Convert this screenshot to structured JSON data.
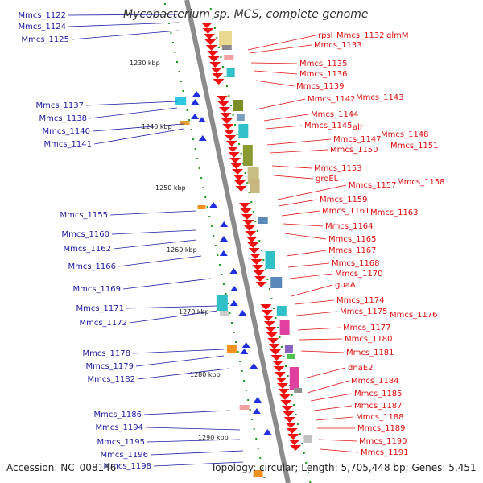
{
  "title": "Mycobacterium sp. MCS, complete genome",
  "footer": {
    "accession": "Accession: NC_008146",
    "summary": "Topology: circular; Length: 5,705,448 bp; Genes: 5,451"
  },
  "colors": {
    "axis": "#8c8c8c",
    "forward_strand": "#2030e0",
    "reverse_strand": "#f01010",
    "left_label": "#1a1aa6",
    "right_label": "#e01010",
    "tick": "#1a9a1a"
  },
  "scale_ticks": [
    "1230 kbp",
    "1240 kbp",
    "1250 kbp",
    "1260 kbp",
    "1270 kbp",
    "1280 kbp",
    "1290 kbp"
  ],
  "left_genes": [
    "Mmcs_1122",
    "Mmcs_1124",
    "Mmcs_1125",
    "Mmcs_1137",
    "Mmcs_1138",
    "Mmcs_1140",
    "Mmcs_1141",
    "Mmcs_1155",
    "Mmcs_1160",
    "Mmcs_1162",
    "Mmcs_1166",
    "Mmcs_1169",
    "Mmcs_1171",
    "Mmcs_1172",
    "Mmcs_1178",
    "Mmcs_1179",
    "Mmcs_1182",
    "Mmcs_1186",
    "Mmcs_1194",
    "Mmcs_1195",
    "Mmcs_1196",
    "Mmcs_1198"
  ],
  "right_genes": [
    "rpsI",
    "Mmcs_1132",
    "glmM",
    "Mmcs_1133",
    "Mmcs_1135",
    "Mmcs_1136",
    "Mmcs_1139",
    "Mmcs_1142",
    "Mmcs_1143",
    "Mmcs_1144",
    "Mmcs_1145",
    "alr",
    "Mmcs_1147",
    "Mmcs_1148",
    "Mmcs_1150",
    "Mmcs_1151",
    "Mmcs_1153",
    "groEL",
    "Mmcs_1157",
    "Mmcs_1158",
    "Mmcs_1159",
    "Mmcs_1161",
    "Mmcs_1163",
    "Mmcs_1164",
    "Mmcs_1165",
    "Mmcs_1167",
    "Mmcs_1168",
    "Mmcs_1170",
    "guaA",
    "Mmcs_1174",
    "Mmcs_1175",
    "Mmcs_1176",
    "Mmcs_1177",
    "Mmcs_1180",
    "Mmcs_1181",
    "dnaE2",
    "Mmcs_1184",
    "Mmcs_1185",
    "Mmcs_1187",
    "Mmcs_1188",
    "Mmcs_1189",
    "Mmcs_1190",
    "Mmcs_1191"
  ]
}
